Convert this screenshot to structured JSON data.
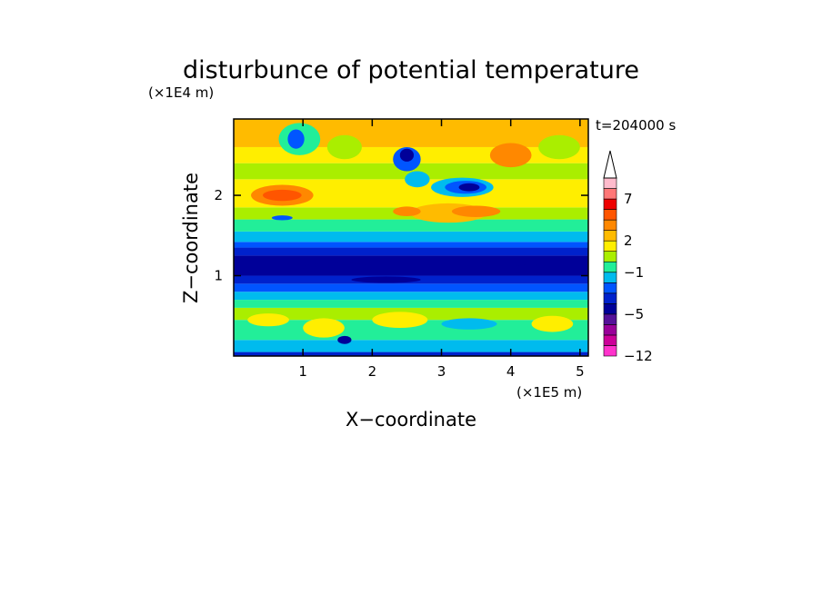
{
  "chart_data": {
    "type": "heatmap",
    "title": "disturbunce of potential temperature",
    "time_label": "t=204000 s",
    "xlabel": "X−coordinate",
    "ylabel": "Z−coordinate",
    "x_scale_label": "(×1E5 m)",
    "y_scale_label": "(×1E4 m)",
    "xlim": [
      0,
      5.12
    ],
    "ylim": [
      0,
      2.95
    ],
    "x_ticks": [
      1,
      2,
      3,
      4,
      5
    ],
    "y_ticks": [
      1,
      2
    ],
    "x_tick_labels": [
      "1",
      "2",
      "3",
      "4",
      "5"
    ],
    "y_tick_labels": [
      "1",
      "2"
    ],
    "colorbar": {
      "colors": [
        "#ff33cc",
        "#cc0099",
        "#990099",
        "#551199",
        "#000099",
        "#0022cc",
        "#0055ff",
        "#00bbee",
        "#22ee99",
        "#aaee00",
        "#ffee00",
        "#ffbb00",
        "#ff8800",
        "#ff5500",
        "#ee0000",
        "#ff7777",
        "#ffbbcc"
      ],
      "tick_labels": [
        "−12",
        "−5",
        "−1",
        "2",
        "7"
      ],
      "tick_index": [
        0,
        4,
        8,
        11,
        15
      ],
      "extend": "max"
    },
    "bands": [
      {
        "z": [
          0.0,
          0.05
        ],
        "value": -5,
        "color": "#0022cc"
      },
      {
        "z": [
          0.05,
          0.2
        ],
        "value": -1,
        "color": "#00bbee"
      },
      {
        "z": [
          0.2,
          0.45
        ],
        "value": 0,
        "color": "#22ee99"
      },
      {
        "z": [
          0.45,
          0.6
        ],
        "value": 1,
        "color": "#aaee00"
      },
      {
        "z": [
          0.6,
          0.7
        ],
        "value": 0,
        "color": "#22ee99"
      },
      {
        "z": [
          0.7,
          0.8
        ],
        "value": -1,
        "color": "#00bbee"
      },
      {
        "z": [
          0.8,
          0.9
        ],
        "value": -3,
        "color": "#0055ff"
      },
      {
        "z": [
          0.9,
          1.0
        ],
        "value": -4,
        "color": "#0022cc"
      },
      {
        "z": [
          1.0,
          1.25
        ],
        "value": -5,
        "color": "#000099"
      },
      {
        "z": [
          1.25,
          1.35
        ],
        "value": -4,
        "color": "#0022cc"
      },
      {
        "z": [
          1.35,
          1.42
        ],
        "value": -2,
        "color": "#0055ff"
      },
      {
        "z": [
          1.42,
          1.55
        ],
        "value": -1,
        "color": "#00bbee"
      },
      {
        "z": [
          1.55,
          1.7
        ],
        "value": 0,
        "color": "#22ee99"
      },
      {
        "z": [
          1.7,
          1.85
        ],
        "value": 1,
        "color": "#aaee00"
      },
      {
        "z": [
          1.85,
          2.2
        ],
        "value": 2,
        "color": "#ffee00"
      },
      {
        "z": [
          2.2,
          2.4
        ],
        "value": 1,
        "color": "#aaee00"
      },
      {
        "z": [
          2.4,
          2.6
        ],
        "value": 2,
        "color": "#ffee00"
      },
      {
        "z": [
          2.6,
          2.95
        ],
        "value": 2,
        "color": "#ffbb00"
      }
    ],
    "features": [
      {
        "x": 0.7,
        "z": 2.0,
        "rx": 0.45,
        "rz": 0.13,
        "value": 4,
        "color": "#ff8800"
      },
      {
        "x": 0.7,
        "z": 2.0,
        "rx": 0.28,
        "rz": 0.07,
        "value": 5,
        "color": "#ff5500"
      },
      {
        "x": 3.1,
        "z": 1.78,
        "rx": 0.55,
        "rz": 0.12,
        "value": 3,
        "color": "#ffbb00"
      },
      {
        "x": 3.5,
        "z": 1.8,
        "rx": 0.35,
        "rz": 0.07,
        "value": 4,
        "color": "#ff8800"
      },
      {
        "x": 2.5,
        "z": 1.8,
        "rx": 0.2,
        "rz": 0.06,
        "value": 4,
        "color": "#ff8800"
      },
      {
        "x": 3.3,
        "z": 2.1,
        "rx": 0.45,
        "rz": 0.12,
        "value": -1,
        "color": "#00bbee"
      },
      {
        "x": 3.35,
        "z": 2.1,
        "rx": 0.3,
        "rz": 0.08,
        "value": -3,
        "color": "#0055ff"
      },
      {
        "x": 3.4,
        "z": 2.1,
        "rx": 0.15,
        "rz": 0.05,
        "value": -5,
        "color": "#000099"
      },
      {
        "x": 2.5,
        "z": 2.45,
        "rx": 0.2,
        "rz": 0.15,
        "value": -3,
        "color": "#0055ff"
      },
      {
        "x": 2.5,
        "z": 2.5,
        "rx": 0.1,
        "rz": 0.08,
        "value": -5,
        "color": "#000099"
      },
      {
        "x": 2.65,
        "z": 2.2,
        "rx": 0.18,
        "rz": 0.1,
        "value": -1,
        "color": "#00bbee"
      },
      {
        "x": 0.95,
        "z": 2.7,
        "rx": 0.3,
        "rz": 0.2,
        "value": 0,
        "color": "#22ee99"
      },
      {
        "x": 0.9,
        "z": 2.7,
        "rx": 0.12,
        "rz": 0.12,
        "value": -3,
        "color": "#0055ff"
      },
      {
        "x": 1.6,
        "z": 2.6,
        "rx": 0.25,
        "rz": 0.15,
        "value": 1,
        "color": "#aaee00"
      },
      {
        "x": 0.7,
        "z": 1.72,
        "rx": 0.15,
        "rz": 0.03,
        "value": -3,
        "color": "#0055ff"
      },
      {
        "x": 4.0,
        "z": 2.5,
        "rx": 0.3,
        "rz": 0.15,
        "value": 3,
        "color": "#ff8800"
      },
      {
        "x": 4.7,
        "z": 2.6,
        "rx": 0.3,
        "rz": 0.15,
        "value": 1,
        "color": "#aaee00"
      },
      {
        "x": 1.3,
        "z": 0.35,
        "rx": 0.3,
        "rz": 0.12,
        "value": 2,
        "color": "#ffee00"
      },
      {
        "x": 2.4,
        "z": 0.45,
        "rx": 0.4,
        "rz": 0.1,
        "value": 2,
        "color": "#ffee00"
      },
      {
        "x": 0.5,
        "z": 0.45,
        "rx": 0.3,
        "rz": 0.08,
        "value": 2,
        "color": "#ffee00"
      },
      {
        "x": 4.6,
        "z": 0.4,
        "rx": 0.3,
        "rz": 0.1,
        "value": 2,
        "color": "#ffee00"
      },
      {
        "x": 3.4,
        "z": 0.4,
        "rx": 0.4,
        "rz": 0.07,
        "value": -1,
        "color": "#00bbee"
      },
      {
        "x": 1.6,
        "z": 0.2,
        "rx": 0.1,
        "rz": 0.05,
        "value": -5,
        "color": "#000099"
      },
      {
        "x": 1.5,
        "z": 1.1,
        "rx": 0.5,
        "rz": 0.06,
        "value": -6,
        "color": "#000099"
      },
      {
        "x": 4.3,
        "z": 1.08,
        "rx": 0.3,
        "rz": 0.06,
        "value": -5,
        "color": "#000099"
      },
      {
        "x": 2.2,
        "z": 0.95,
        "rx": 0.5,
        "rz": 0.04,
        "value": -5,
        "color": "#000099"
      }
    ]
  }
}
